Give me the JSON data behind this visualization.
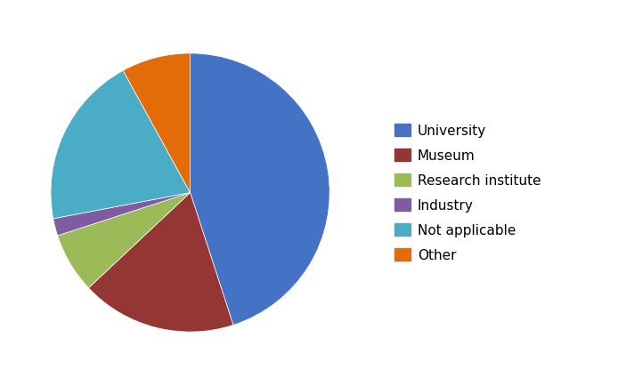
{
  "labels": [
    "University",
    "Museum",
    "Research institute",
    "Industry",
    "Not applicable",
    "Other"
  ],
  "values": [
    45,
    18,
    7,
    2,
    20,
    8
  ],
  "colors": [
    "#4472C4",
    "#943634",
    "#9BBB59",
    "#7F5CA2",
    "#4BACC6",
    "#E36C09"
  ],
  "legend_fontsize": 11,
  "figsize": [
    7.12,
    4.35
  ],
  "dpi": 100,
  "startangle": 90,
  "background_color": "#ffffff",
  "border_color": "#aaaaaa"
}
